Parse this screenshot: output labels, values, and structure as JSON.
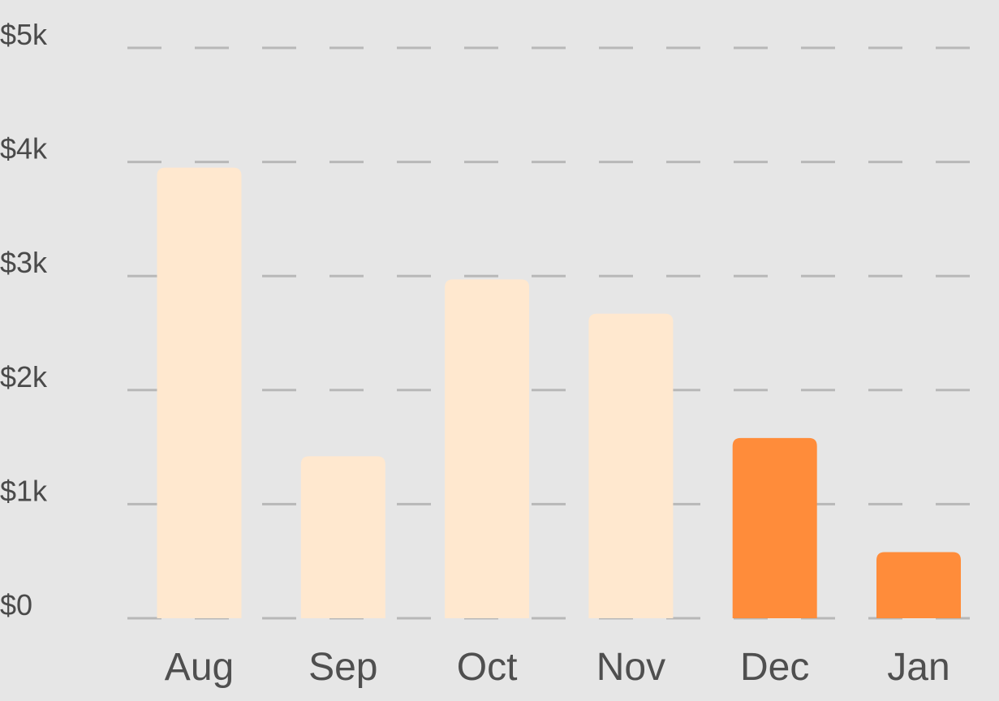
{
  "colors": {
    "background": "#e6e6e6",
    "bar_muted": "#ffe8cf",
    "bar_highlight": "#ff8c3a",
    "gridline": "#b8b8b8",
    "text": "#4f4f4f"
  },
  "chart_data": {
    "type": "bar",
    "categories": [
      "Aug",
      "Sep",
      "Oct",
      "Nov",
      "Dec",
      "Jan"
    ],
    "values": [
      3950,
      1420,
      2970,
      2670,
      1580,
      580
    ],
    "highlighted": [
      false,
      false,
      false,
      false,
      true,
      true
    ],
    "ylim": [
      0,
      5000
    ],
    "yticks": [
      0,
      1000,
      2000,
      3000,
      4000,
      5000
    ],
    "ytick_labels": [
      "$0",
      "$1k",
      "$2k",
      "$3k",
      "$4k",
      "$5k"
    ],
    "grid": true,
    "legend": "none"
  }
}
